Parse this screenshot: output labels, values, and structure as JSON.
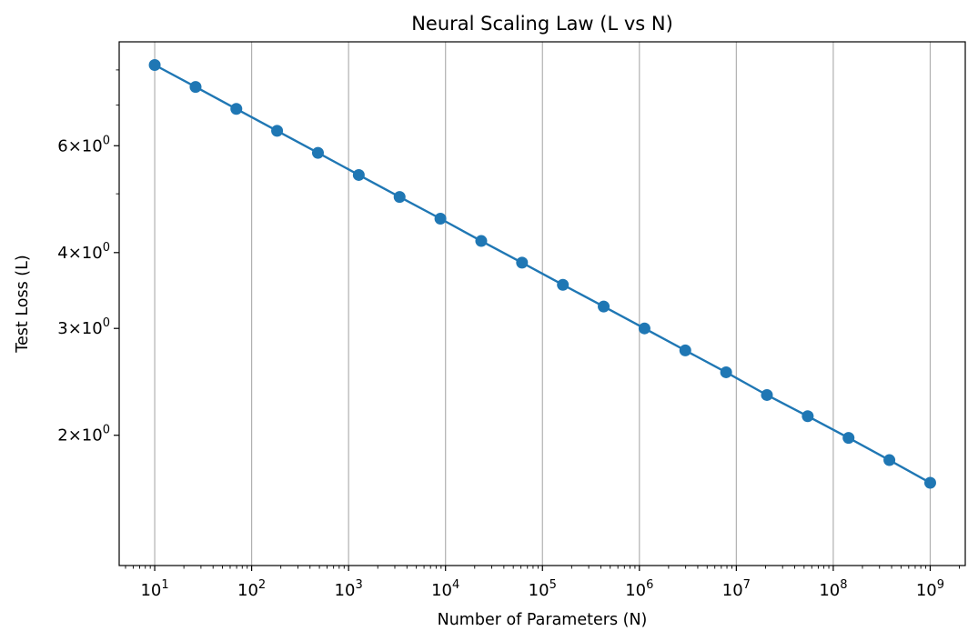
{
  "chart_data": {
    "type": "line",
    "title": "Neural Scaling Law (L vs N)",
    "xlabel": "Number of Parameters (N)",
    "ylabel": "Test Loss (L)",
    "xscale": "log",
    "yscale": "log",
    "xlim": [
      4.3,
      2300000000
    ],
    "ylim": [
      1.22,
      8.9
    ],
    "grid": "x-major",
    "x_ticks": [
      {
        "value": 10,
        "base": "10",
        "exp": "1"
      },
      {
        "value": 100,
        "base": "10",
        "exp": "2"
      },
      {
        "value": 1000,
        "base": "10",
        "exp": "3"
      },
      {
        "value": 10000,
        "base": "10",
        "exp": "4"
      },
      {
        "value": 100000,
        "base": "10",
        "exp": "5"
      },
      {
        "value": 1000000,
        "base": "10",
        "exp": "6"
      },
      {
        "value": 10000000,
        "base": "10",
        "exp": "7"
      },
      {
        "value": 100000000,
        "base": "10",
        "exp": "8"
      },
      {
        "value": 1000000000,
        "base": "10",
        "exp": "9"
      }
    ],
    "y_ticks": [
      {
        "value": 2,
        "mant": "2",
        "exp": "0"
      },
      {
        "value": 3,
        "mant": "3",
        "exp": "0"
      },
      {
        "value": 4,
        "mant": "4",
        "exp": "0"
      },
      {
        "value": 6,
        "mant": "6",
        "exp": "0"
      }
    ],
    "y_minor_ticks": [
      5,
      7,
      8
    ],
    "colors": {
      "series": "#1f77b4",
      "grid": "#b0b0b0"
    },
    "series": [
      {
        "x": [
          10,
          26.4,
          69.5,
          183,
          483,
          1274,
          3360,
          8860,
          23360,
          61580,
          162400,
          428100,
          1129000,
          2976000,
          7848000,
          20690000,
          54560000,
          143800000,
          379300000,
          1000000000
        ],
        "y": [
          8.15,
          7.5,
          6.9,
          6.35,
          5.84,
          5.37,
          4.94,
          4.55,
          4.18,
          3.85,
          3.54,
          3.26,
          3.0,
          2.76,
          2.54,
          2.33,
          2.15,
          1.98,
          1.82,
          1.67
        ]
      }
    ]
  }
}
